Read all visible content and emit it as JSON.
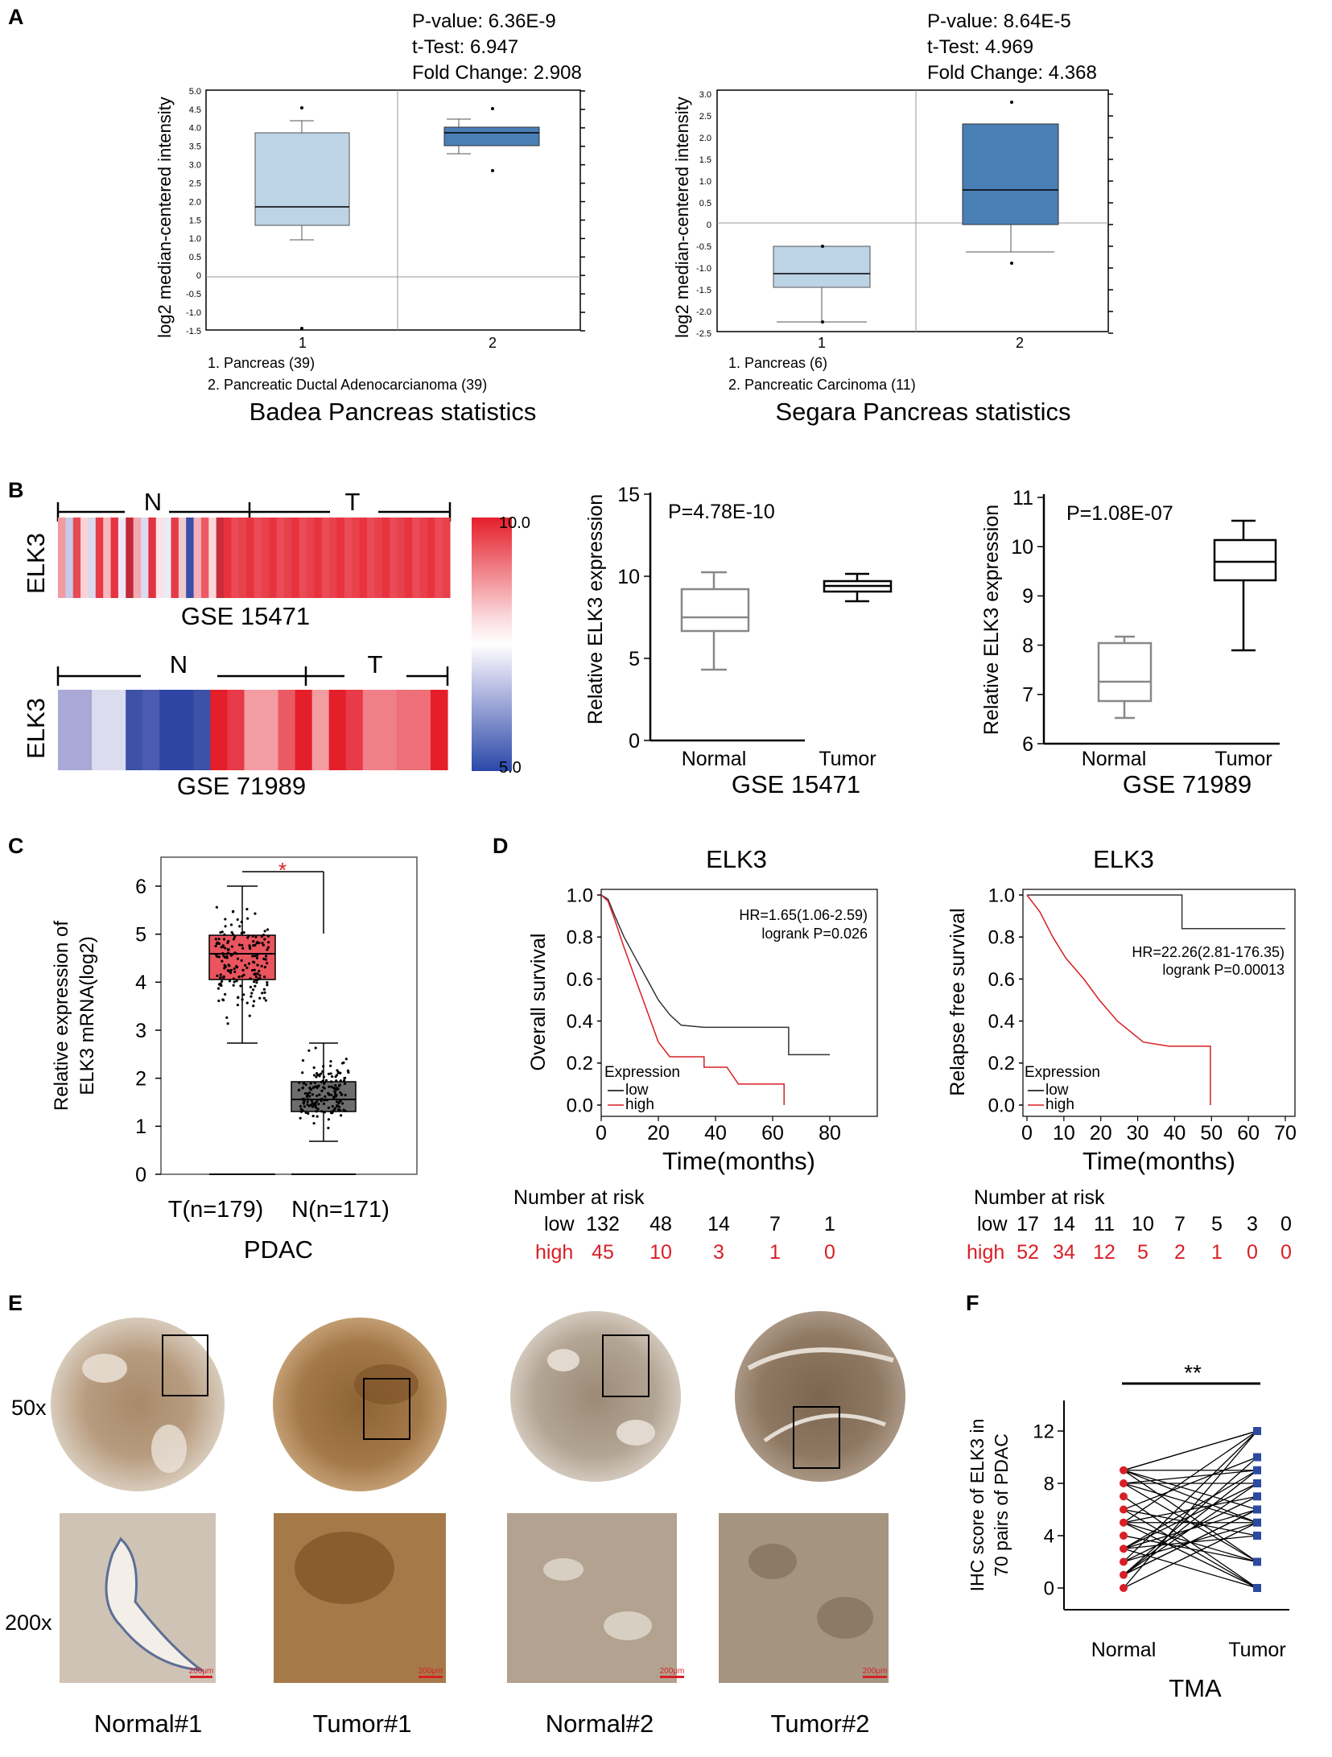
{
  "panels": {
    "a": {
      "label": "A",
      "charts": [
        {
          "title": "Badea Pancreas statistics",
          "stats": [
            "P-value: 6.36E-9",
            "t-Test: 6.947",
            "Fold Change: 2.908"
          ],
          "ylabel": "log2 median-centered intensity",
          "yticks": [
            "5.0",
            "4.5",
            "4.0",
            "3.5",
            "3.0",
            "2.5",
            "2.0",
            "1.5",
            "1.0",
            "0.5",
            "0",
            "-0.5",
            "-1.0",
            "-1.5"
          ],
          "xticks": [
            "1",
            "2"
          ],
          "legend": [
            "1. Pancreas (39)",
            "2. Pancreatic Ductal Adenocarcianoma (39)"
          ]
        },
        {
          "title": "Segara Pancreas statistics",
          "stats": [
            "P-value: 8.64E-5",
            "t-Test: 4.969",
            "Fold Change: 4.368"
          ],
          "ylabel": "log2 median-centered intensity",
          "yticks": [
            "3.0",
            "2.5",
            "2.0",
            "1.5",
            "1.0",
            "0.5",
            "0",
            "-0.5",
            "-1.0",
            "-1.5",
            "-2.0",
            "-2.5"
          ],
          "xticks": [
            "1",
            "2"
          ],
          "legend": [
            "1. Pancreas (6)",
            "2. Pancreatic Carcinoma (11)"
          ]
        }
      ]
    },
    "b": {
      "label": "B",
      "heatmap1": {
        "gene": "ELK3",
        "n_label": "N",
        "t_label": "T",
        "dataset": "GSE 15471"
      },
      "heatmap2": {
        "gene": "ELK3",
        "n_label": "N",
        "t_label": "T",
        "dataset": "GSE 71989"
      },
      "scale": {
        "max": "10.0",
        "min": "5.0"
      },
      "box1": {
        "pvalue": "P=4.78E-10",
        "ylabel": "Relative ELK3 expression",
        "yticks": [
          "15",
          "10",
          "5",
          "0"
        ],
        "xticks": [
          "Normal",
          "Tumor"
        ],
        "dataset": "GSE 15471"
      },
      "box2": {
        "pvalue": "P=1.08E-07",
        "ylabel": "Relative ELK3 expression",
        "yticks": [
          "11",
          "10",
          "9",
          "8",
          "7",
          "6"
        ],
        "xticks": [
          "Normal",
          "Tumor"
        ],
        "dataset": "GSE 71989"
      }
    },
    "c": {
      "label": "C",
      "ylabel_line1": "Relative expression of",
      "ylabel_line2": "ELK3 mRNA(log2)",
      "yticks": [
        "6",
        "5",
        "4",
        "3",
        "2",
        "1",
        "0"
      ],
      "xticks": [
        "T(n=179)",
        "N(n=171)"
      ],
      "xlabel": "PDAC",
      "sig": "*"
    },
    "d": {
      "label": "D",
      "km1": {
        "title": "ELK3",
        "ylabel": "Overall survival",
        "xlabel": "Time(months)",
        "hr": "HR=1.65(1.06-2.59)",
        "logrank": "logrank P=0.026",
        "yticks": [
          "1.0",
          "0.8",
          "0.6",
          "0.4",
          "0.2",
          "0.0"
        ],
        "xticks": [
          "0",
          "20",
          "40",
          "60",
          "80"
        ],
        "legend_title": "Expression",
        "legend_low": "low",
        "legend_high": "high",
        "risk_title": "Number at risk",
        "risk_low_label": "low",
        "risk_high_label": "high",
        "risk_low": [
          "132",
          "48",
          "14",
          "7",
          "1"
        ],
        "risk_high": [
          "45",
          "10",
          "3",
          "1",
          "0"
        ]
      },
      "km2": {
        "title": "ELK3",
        "ylabel": "Relapse free survival",
        "xlabel": "Time(months)",
        "hr": "HR=22.26(2.81-176.35)",
        "logrank": "logrank P=0.00013",
        "yticks": [
          "1.0",
          "0.8",
          "0.6",
          "0.4",
          "0.2",
          "0.0"
        ],
        "xticks": [
          "0",
          "10",
          "20",
          "30",
          "40",
          "50",
          "60",
          "70"
        ],
        "legend_title": "Expression",
        "legend_low": "low",
        "legend_high": "high",
        "risk_title": "Number at risk",
        "risk_low_label": "low",
        "risk_high_label": "high",
        "risk_low": [
          "17",
          "14",
          "11",
          "10",
          "7",
          "5",
          "3",
          "0"
        ],
        "risk_high": [
          "52",
          "34",
          "12",
          "5",
          "2",
          "1",
          "0",
          "0"
        ]
      }
    },
    "e": {
      "label": "E",
      "row_labels": [
        "50x",
        "200x"
      ],
      "captions": [
        "Normal#1",
        "Tumor#1",
        "Normal#2",
        "Tumor#2"
      ],
      "scale_bar": "200μm"
    },
    "f": {
      "label": "F",
      "ylabel_line1": "IHC score of ELK3 in",
      "ylabel_line2": "70 pairs of PDAC",
      "yticks": [
        "12",
        "8",
        "4",
        "0"
      ],
      "xticks": [
        "Normal",
        "Tumor"
      ],
      "xlabel": "TMA",
      "sig": "**"
    }
  },
  "colors": {
    "accent_red": "#d81f26",
    "box_light": "#bdd3e6",
    "box_dark": "#4a7fb5",
    "tumor_red": "#e9545f",
    "normal_grey": "#6d6d6d"
  }
}
